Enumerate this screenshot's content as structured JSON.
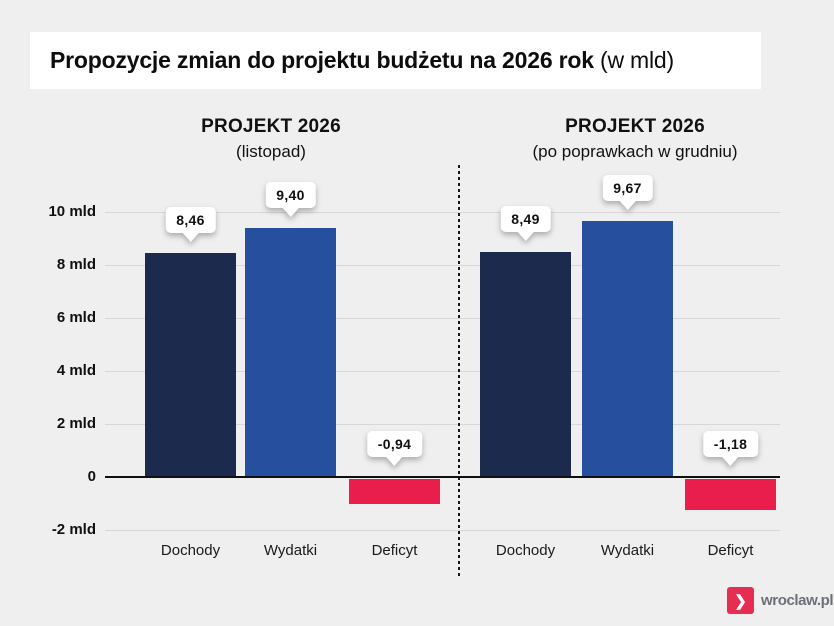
{
  "header": {
    "title_bold": "Propozycje zmian do projektu budżetu na 2026 rok",
    "title_light": " (w mld)"
  },
  "chart_data": {
    "type": "bar",
    "title": "Propozycje zmian do projektu budżetu na 2026 rok (w mld)",
    "unit": "mld",
    "categories": [
      "Dochody",
      "Wydatki",
      "Deficyt"
    ],
    "groups": [
      {
        "title": "PROJEKT 2026",
        "subtitle": "(listopad)",
        "series": [
          {
            "category": "Dochody",
            "value": 8.46,
            "label": "8,46"
          },
          {
            "category": "Wydatki",
            "value": 9.4,
            "label": "9,40"
          },
          {
            "category": "Deficyt",
            "value": -0.94,
            "label": "-0,94"
          }
        ]
      },
      {
        "title": "PROJEKT 2026",
        "subtitle": "(po poprawkach w grudniu)",
        "series": [
          {
            "category": "Dochody",
            "value": 8.49,
            "label": "8,49"
          },
          {
            "category": "Wydatki",
            "value": 9.67,
            "label": "9,67"
          },
          {
            "category": "Deficyt",
            "value": -1.18,
            "label": "-1,18"
          }
        ]
      }
    ],
    "y_axis": {
      "min": -2,
      "max": 10,
      "tick_values": [
        10,
        8,
        6,
        4,
        2,
        0,
        -2
      ],
      "tick_labels": [
        "10 mld",
        "8 mld",
        "6 mld",
        "4 mld",
        "2 mld",
        "0",
        "-2 mld"
      ]
    },
    "colors": {
      "Dochody": "#1c2a4e",
      "Wydatki": "#26509e",
      "Deficyt": "#ea1e4d"
    },
    "grid": true,
    "legend": "none"
  },
  "footer": {
    "brand": "wroclaw.pl",
    "chevron_icon": "❯",
    "brand_color": "#e62d52",
    "brand_text_color": "#6b7078"
  }
}
